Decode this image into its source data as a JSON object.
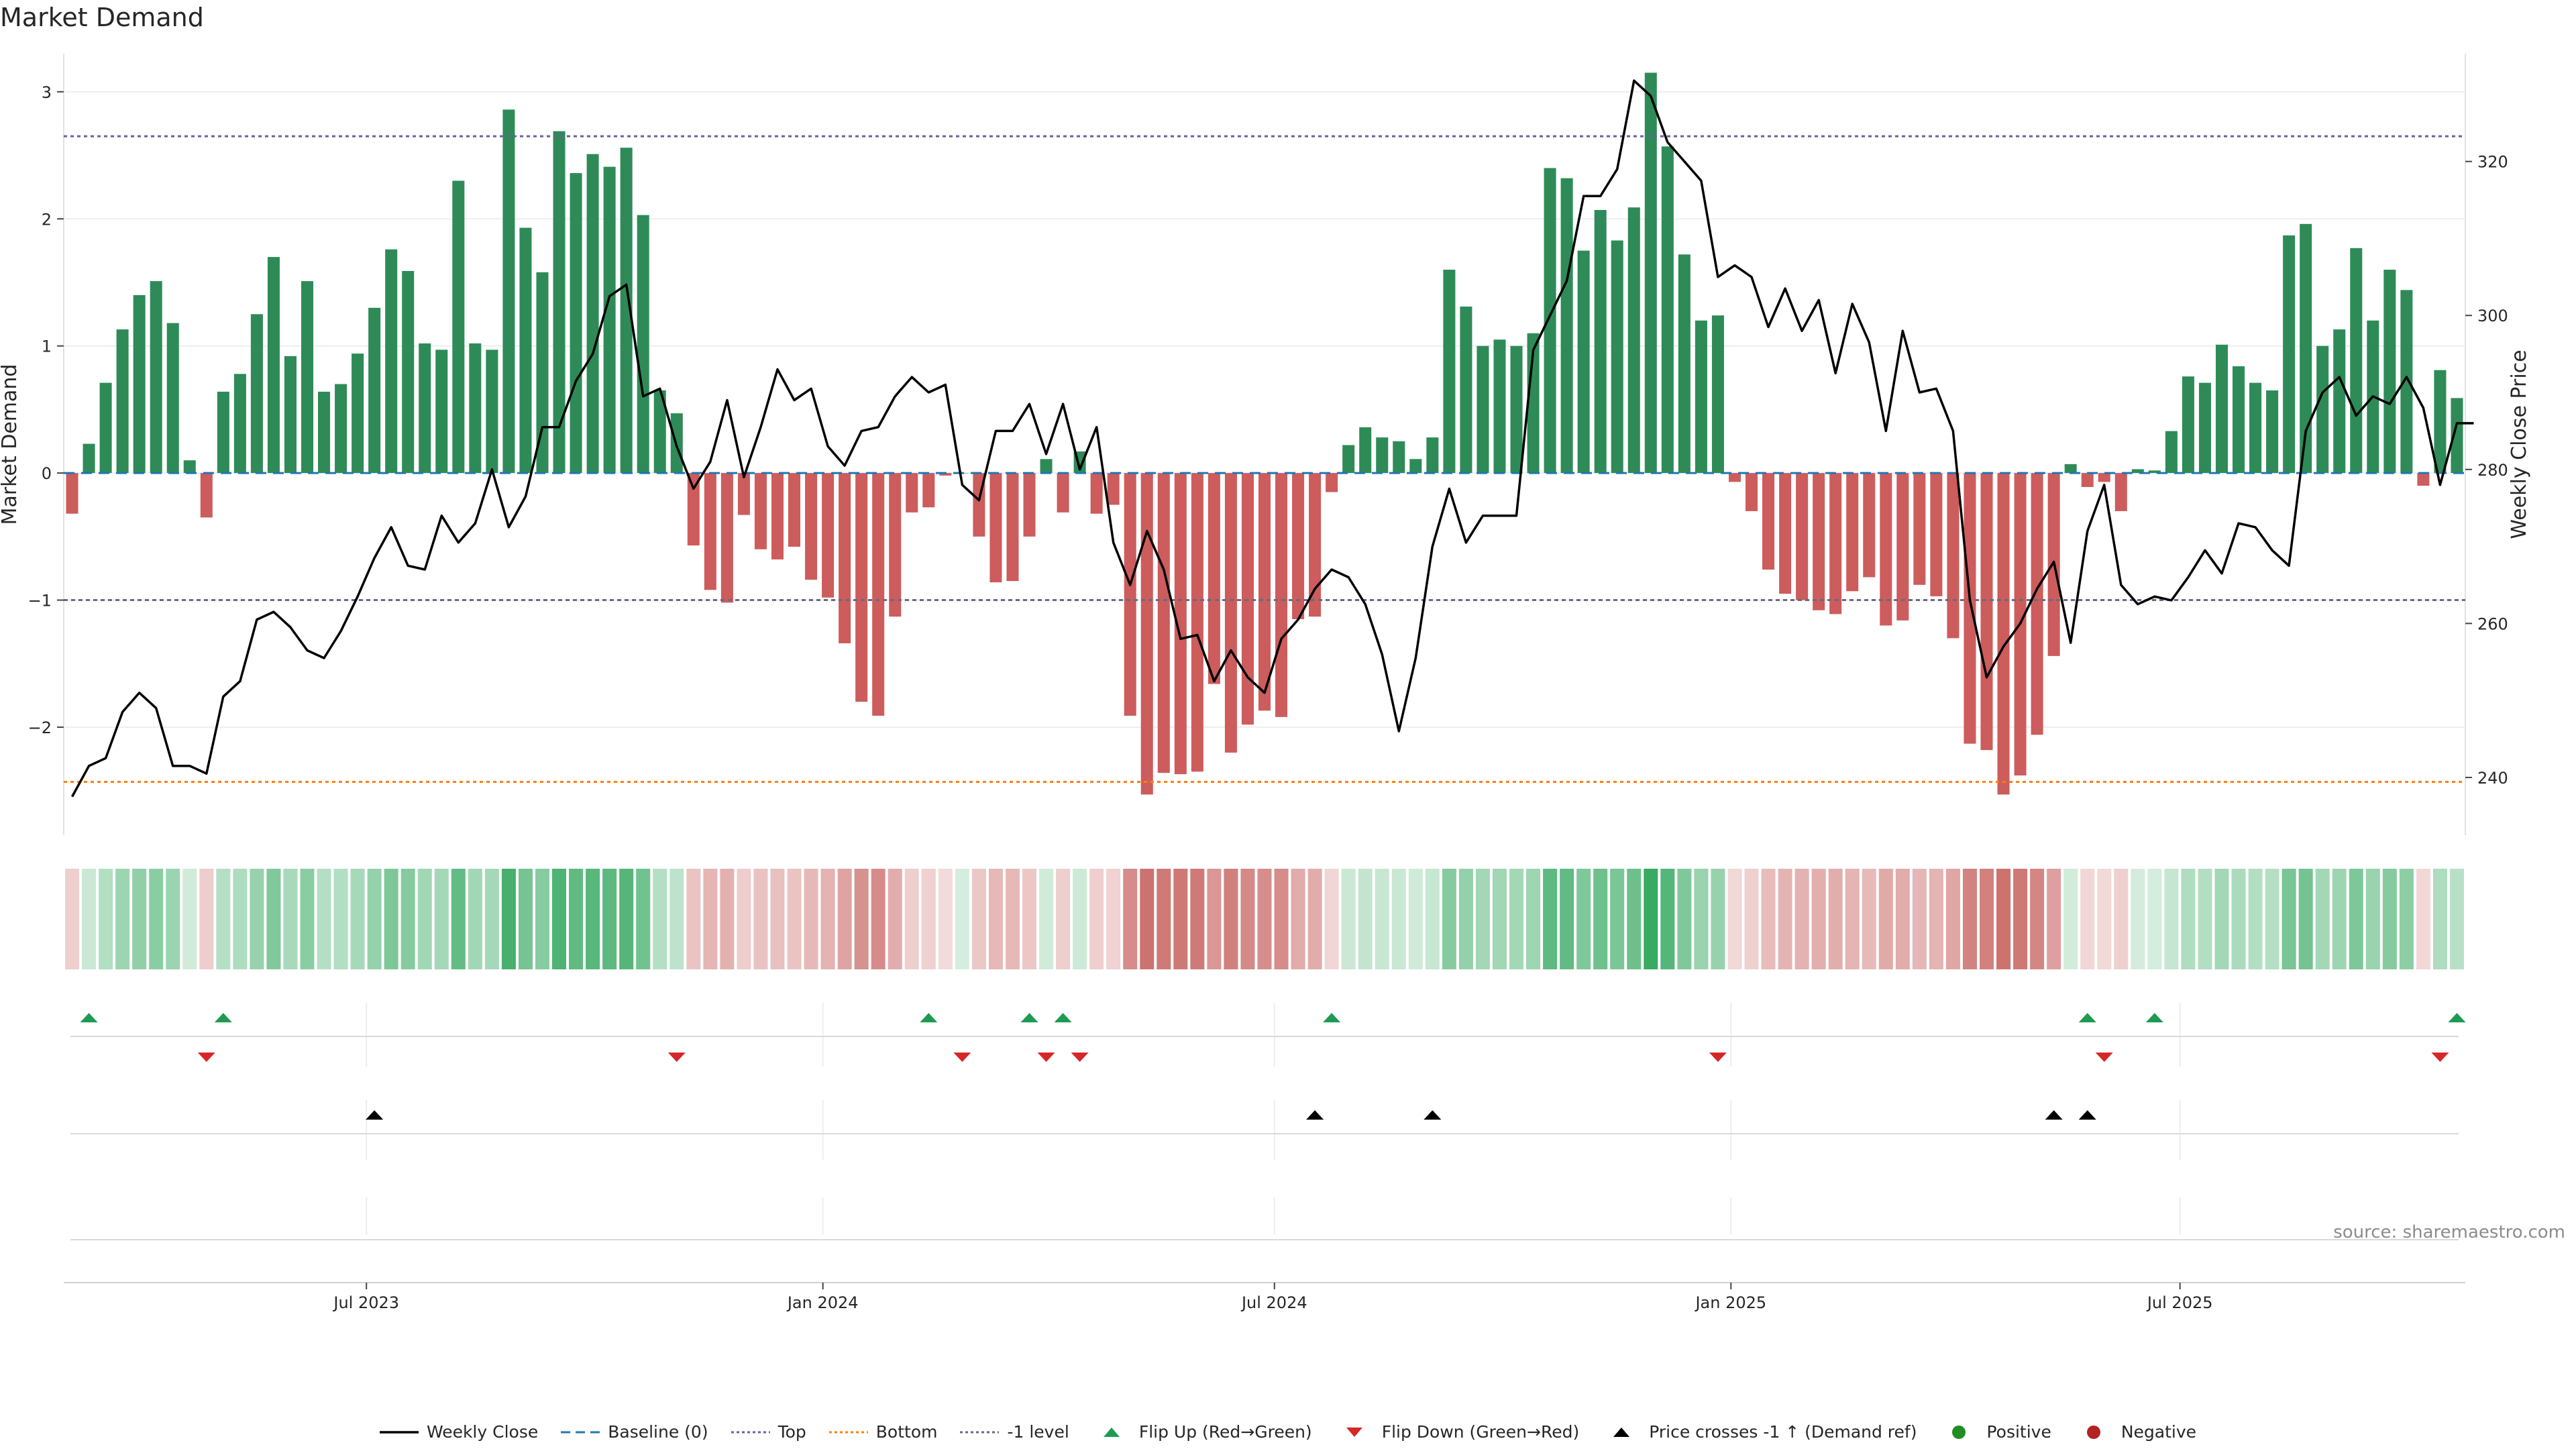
{
  "title": "Market Demand",
  "source": "source: sharemaestro.com",
  "colors": {
    "positive": "#2e8b57",
    "negative": "#cd5c5c",
    "price_line": "#000000",
    "baseline": "#1f77b4",
    "top": "#6c5fa0",
    "bottom": "#ff7f0e",
    "minus_one": "#6a6a80",
    "flip_up": "#1e9a52",
    "flip_down": "#d62728",
    "cross": "#000000",
    "legend_positive": "#228b22",
    "legend_negative": "#b22222"
  },
  "chart_data": {
    "type": "bar+line",
    "x_axis": {
      "start": "2023-03-01",
      "end": "2025-10-24",
      "tick_labels": [
        "Jul 2023",
        "Jan 2024",
        "Jul 2024",
        "Jan 2025",
        "Jul 2025"
      ],
      "tick_dates": [
        "2023-07-01",
        "2024-01-01",
        "2024-07-01",
        "2025-01-01",
        "2025-07-01"
      ]
    },
    "y_left": {
      "label": "Market Demand",
      "ylim": [
        -2.85,
        3.3
      ],
      "ticks": [
        3,
        2,
        1,
        0,
        -1,
        -2
      ],
      "tick_labels": [
        "3",
        "2",
        "1",
        "0",
        "−1",
        "−2"
      ]
    },
    "y_right": {
      "label": "Weekly Close Price",
      "ylim": [
        232.5,
        334
      ],
      "ticks": [
        320,
        300,
        280,
        260,
        240
      ],
      "tick_labels": [
        "320",
        "300",
        "280",
        "260",
        "240"
      ]
    },
    "levels": {
      "top": 2.65,
      "bottom": -2.43,
      "minus_one": -1.0,
      "baseline": 0
    },
    "demand": [
      -0.32,
      0.23,
      0.71,
      1.13,
      1.4,
      1.51,
      1.18,
      0.1,
      -0.35,
      0.64,
      0.78,
      1.25,
      1.7,
      0.92,
      1.51,
      0.64,
      0.7,
      0.94,
      1.3,
      1.76,
      1.59,
      1.02,
      0.97,
      2.3,
      1.02,
      0.97,
      2.86,
      1.93,
      1.58,
      2.69,
      2.36,
      2.51,
      2.41,
      2.56,
      2.03,
      0.65,
      0.47,
      -0.57,
      -0.92,
      -1.02,
      -0.33,
      -0.6,
      -0.68,
      -0.58,
      -0.84,
      -0.98,
      -1.34,
      -1.8,
      -1.91,
      -1.13,
      -0.31,
      -0.27,
      -0.02,
      0,
      -0.5,
      -0.86,
      -0.85,
      -0.5,
      0.11,
      -0.31,
      0.17,
      -0.32,
      -0.25,
      -1.91,
      -2.53,
      -2.36,
      -2.37,
      -2.35,
      -1.66,
      -2.2,
      -1.98,
      -1.87,
      -1.92,
      -1.15,
      -1.13,
      -0.15,
      0.22,
      0.36,
      0.28,
      0.25,
      0.11,
      0.28,
      1.6,
      1.31,
      1.0,
      1.05,
      1.0,
      1.1,
      2.4,
      2.32,
      1.75,
      2.07,
      1.83,
      2.09,
      3.15,
      2.57,
      1.72,
      1.2,
      1.24,
      -0.07,
      -0.3,
      -0.76,
      -0.95,
      -1.0,
      -1.08,
      -1.11,
      -0.93,
      -0.82,
      -1.2,
      -1.16,
      -0.88,
      -0.97,
      -1.3,
      -2.13,
      -2.18,
      -2.53,
      -2.38,
      -2.06,
      -1.44,
      0.07,
      -0.11,
      -0.07,
      -0.3,
      0.03,
      0.02,
      0.33,
      0.76,
      0.71,
      1.01,
      0.84,
      0.71,
      0.65,
      1.87,
      1.96,
      1.0,
      1.13,
      1.77,
      1.2,
      1.6,
      1.44,
      -0.1,
      0.81,
      0.59
    ],
    "close": [
      237.5,
      241.5,
      242.5,
      248.5,
      251.0,
      249.0,
      241.5,
      241.5,
      240.5,
      250.5,
      252.5,
      260.5,
      261.5,
      259.5,
      256.5,
      255.5,
      259.0,
      263.5,
      268.5,
      272.5,
      267.5,
      267.0,
      274.0,
      270.5,
      273.0,
      280.0,
      272.5,
      276.5,
      285.5,
      285.5,
      291.5,
      295.0,
      302.5,
      304.0,
      289.5,
      290.5,
      283.0,
      277.5,
      281.0,
      289.0,
      279.0,
      285.5,
      293.0,
      289.0,
      290.5,
      283.0,
      280.5,
      285.0,
      285.5,
      289.5,
      292.0,
      290.0,
      291.0,
      278.0,
      276.0,
      285.0,
      285.0,
      288.5,
      282.0,
      288.5,
      280.0,
      285.5,
      270.5,
      265.0,
      272.0,
      267.0,
      258.0,
      258.5,
      252.5,
      256.5,
      253.0,
      251.0,
      258.0,
      260.5,
      264.5,
      267.0,
      266.0,
      262.5,
      256.0,
      246.0,
      255.5,
      270.0,
      277.5,
      270.5,
      274.0,
      274.0,
      274.0,
      295.5,
      300.0,
      304.5,
      315.5,
      315.5,
      319.0,
      330.5,
      328.5,
      322.5,
      320.0,
      317.5,
      305.0,
      306.5,
      305.0,
      298.5,
      303.5,
      298.0,
      302.0,
      292.5,
      301.5,
      296.5,
      285.0,
      298.0,
      290.0,
      290.5,
      285.0,
      263.0,
      253.0,
      257.0,
      260.0,
      264.5,
      268.0,
      257.5,
      272.0,
      278.0,
      265.0,
      262.5,
      263.5,
      263.0,
      266.0,
      269.5,
      266.5,
      273.0,
      272.5,
      269.5,
      267.5,
      285.0,
      290.0,
      292.0,
      287.0,
      289.5,
      288.5,
      292.0,
      288.0,
      278.0,
      286.0,
      286.0
    ],
    "flip_up": [
      1,
      9,
      51,
      57,
      59,
      75,
      120,
      124,
      142
    ],
    "flip_down": [
      8,
      36,
      53,
      58,
      60,
      98,
      121,
      141
    ],
    "price_crosses_minus_one": [
      18,
      74,
      81,
      118,
      120
    ]
  },
  "legend": [
    {
      "label": "Weekly Close",
      "kind": "line-solid",
      "color": "#000000"
    },
    {
      "label": "Baseline (0)",
      "kind": "line-dashed",
      "color": "#1f77b4"
    },
    {
      "label": "Top",
      "kind": "line-dotted",
      "color": "#6c5fa0"
    },
    {
      "label": "Bottom",
      "kind": "line-dotted",
      "color": "#ff7f0e"
    },
    {
      "label": "-1 level",
      "kind": "line-dotted",
      "color": "#6a6a80"
    },
    {
      "label": "Flip Up (Red→Green)",
      "kind": "tri-up",
      "color": "#1e9a52"
    },
    {
      "label": "Flip Down (Green→Red)",
      "kind": "tri-down",
      "color": "#d62728"
    },
    {
      "label": "Price crosses -1 ↑ (Demand ref)",
      "kind": "tri-up",
      "color": "#000000"
    },
    {
      "label": "Positive",
      "kind": "dot",
      "color": "#228b22"
    },
    {
      "label": "Negative",
      "kind": "dot",
      "color": "#b22222"
    }
  ]
}
